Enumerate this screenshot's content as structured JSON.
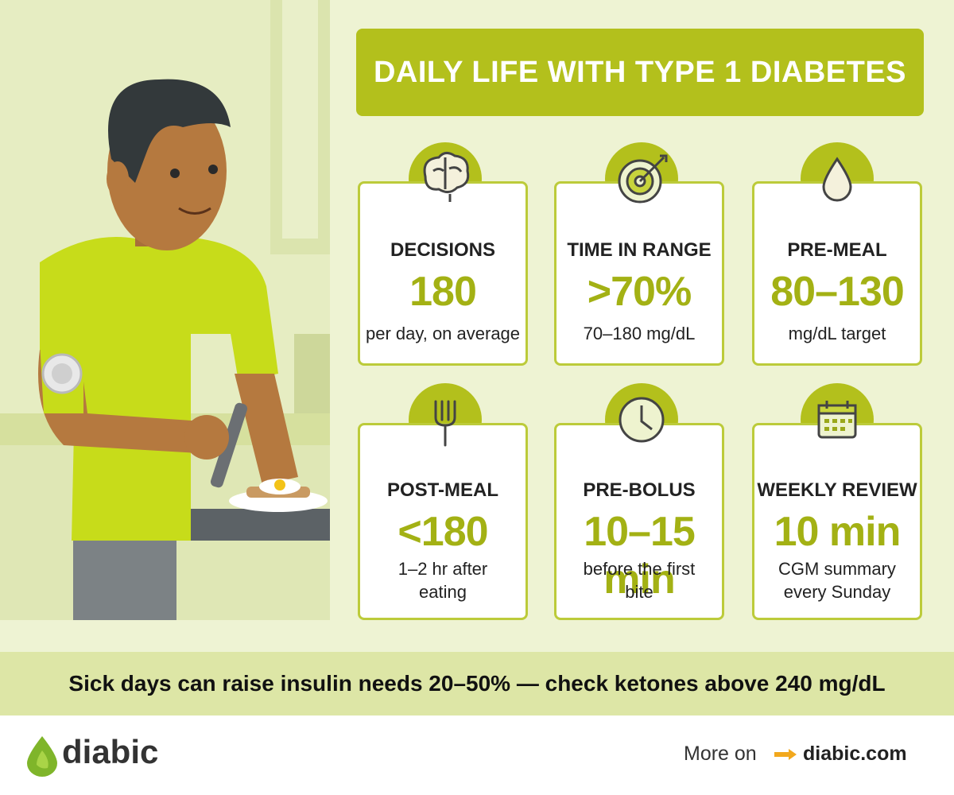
{
  "header": {
    "title": "DAILY LIFE WITH TYPE 1 DIABETES"
  },
  "cards": [
    {
      "label": "DECISIONS",
      "value": "180",
      "note": "per day, on average"
    },
    {
      "label": "TIME IN RANGE",
      "value": ">70%",
      "note": "70–180 mg/dL"
    },
    {
      "label": "PRE-MEAL",
      "value": "80–130",
      "note": "mg/dL target"
    },
    {
      "label": "POST-MEAL",
      "value": "<180",
      "note": "1–2 hr after eating"
    },
    {
      "label": "PRE-BOLUS",
      "value": "10–15 min",
      "note": "before the first bite"
    },
    {
      "label": "WEEKLY REVIEW",
      "value": "10 min",
      "note": "CGM summary every Sunday"
    }
  ],
  "banner": {
    "text": "Sick days can raise insulin needs 20–50% — check ketones above 240 mg/dL"
  },
  "footer": {
    "brand": "diabic",
    "more": "More on",
    "link": "diabic.com"
  }
}
